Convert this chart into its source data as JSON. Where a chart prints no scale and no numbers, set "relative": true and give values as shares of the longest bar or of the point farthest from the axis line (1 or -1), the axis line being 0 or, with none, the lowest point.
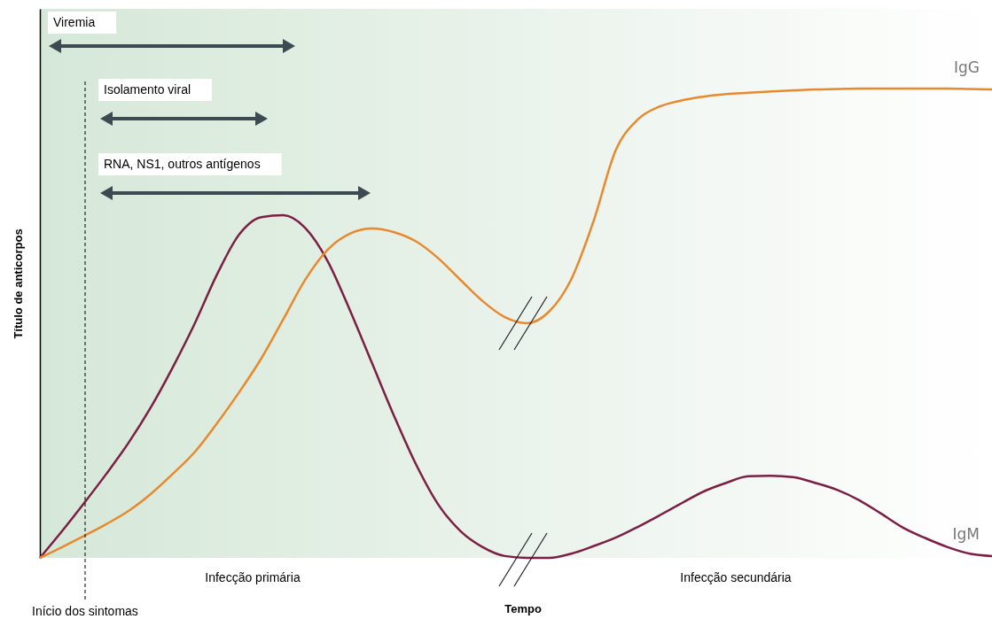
{
  "chart_data": {
    "type": "line",
    "relative": true,
    "xlabel": "Tempo",
    "ylabel": "Título de anticorpos",
    "categories": [
      null,
      null,
      null,
      null,
      null,
      null,
      null,
      null,
      null,
      null,
      null,
      null,
      null,
      null,
      null,
      null,
      null,
      null,
      null,
      null,
      null,
      null,
      null,
      null,
      null,
      null,
      null,
      null,
      null,
      null,
      null,
      null,
      null,
      null,
      null,
      null,
      null,
      null,
      null,
      null,
      null,
      null,
      null,
      null
    ],
    "series": [
      {
        "name": "IgM",
        "color": "#7b1f45",
        "values": [
          0,
          0.057,
          0.117,
          0.179,
          0.245,
          0.32,
          0.406,
          0.5,
          0.604,
          0.689,
          0.726,
          0.73,
          0.702,
          0.632,
          0.528,
          0.415,
          0.302,
          0.198,
          0.113,
          0.057,
          0.023,
          0.004,
          0,
          0,
          0.009,
          0.025,
          0.043,
          0.066,
          0.091,
          0.117,
          0.142,
          0.16,
          0.174,
          0.175,
          0.172,
          0.16,
          0.145,
          0.123,
          0.094,
          0.064,
          0.042,
          0.023,
          0.009,
          0.004
        ]
      },
      {
        "name": "IgG",
        "color": "#e8892e",
        "values": [
          0,
          0.023,
          0.047,
          0.072,
          0.1,
          0.136,
          0.179,
          0.226,
          0.287,
          0.353,
          0.425,
          0.509,
          0.594,
          0.657,
          0.691,
          0.702,
          0.694,
          0.674,
          0.638,
          0.592,
          0.547,
          0.513,
          0.5,
          0.525,
          0.594,
          0.717,
          0.868,
          0.934,
          0.962,
          0.975,
          0.983,
          0.988,
          0.991,
          0.994,
          0.996,
          0.998,
          0.999,
          1,
          1,
          1,
          1,
          1,
          0.999,
          0.998
        ]
      }
    ],
    "annotations": [
      "Viremia",
      "Isolamento viral",
      "RNA, NS1, outros antígenos",
      "Início dos sintomas",
      "Infecção primária",
      "Infecção secundária"
    ]
  }
}
